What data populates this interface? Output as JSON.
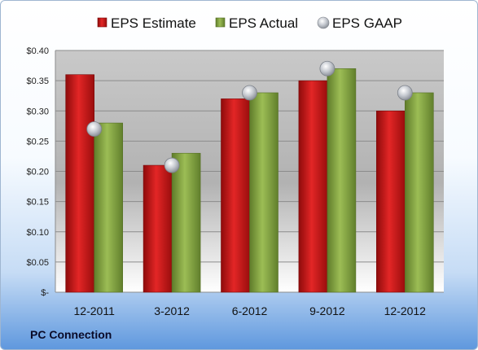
{
  "chart_data": {
    "type": "bar",
    "categories": [
      "12-2011",
      "3-2012",
      "6-2012",
      "9-2012",
      "12-2012"
    ],
    "series": [
      {
        "name": "EPS Estimate",
        "type": "bar",
        "color": "#cc1a1a",
        "values": [
          0.36,
          0.21,
          0.32,
          0.35,
          0.3
        ]
      },
      {
        "name": "EPS Actual",
        "type": "bar",
        "color": "#8aab45",
        "values": [
          0.28,
          0.23,
          0.33,
          0.37,
          0.33
        ]
      },
      {
        "name": "EPS GAAP",
        "type": "marker",
        "color": "#b8bcc4",
        "values": [
          0.27,
          0.21,
          0.33,
          0.37,
          0.33
        ]
      }
    ],
    "ylim": [
      0,
      0.4
    ],
    "yticks": [
      0,
      0.05,
      0.1,
      0.15,
      0.2,
      0.25,
      0.3,
      0.35,
      0.4
    ],
    "ytick_labels": [
      "$-",
      "$0.05",
      "$0.10",
      "$0.15",
      "$0.20",
      "$0.25",
      "$0.30",
      "$0.35",
      "$0.40"
    ],
    "grid": true,
    "legend_position": "top-center"
  },
  "company_name": "PC Connection"
}
